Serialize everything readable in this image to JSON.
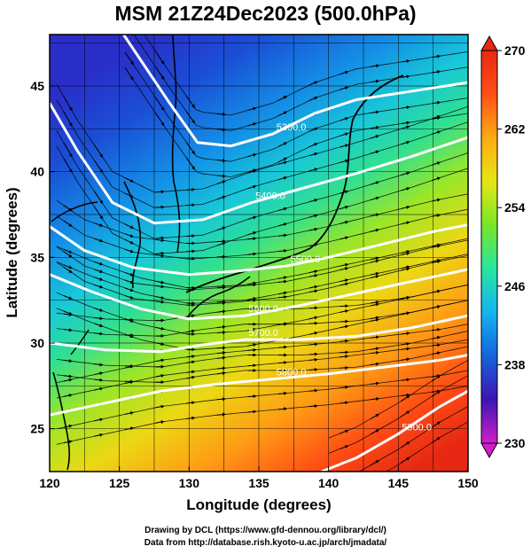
{
  "chart_data": {
    "type": "heatmap",
    "title": "MSM 21Z24Dec2023 (500.0hPa)",
    "xlabel": "Longitude (degrees)",
    "ylabel": "Latitude  (degrees)",
    "xlim": [
      120,
      150
    ],
    "ylim": [
      22.5,
      48
    ],
    "xticks": [
      "120",
      "125",
      "130",
      "135",
      "140",
      "145",
      "150"
    ],
    "yticks": [
      "25",
      "30",
      "35",
      "40",
      "45"
    ],
    "colorbar": {
      "min": 230,
      "max": 270,
      "ticks": [
        "270",
        "262",
        "254",
        "246",
        "238",
        "230"
      ],
      "colors": [
        "#d21ec8",
        "#3c14b4",
        "#1464dc",
        "#14b4f0",
        "#28e6a0",
        "#78e628",
        "#e6e614",
        "#ffaa14",
        "#ff5014",
        "#e62814"
      ]
    },
    "contours": [
      {
        "label": "5300.0",
        "points": [
          [
            125.3,
            48
          ],
          [
            128.6,
            44
          ],
          [
            130.6,
            41.7
          ],
          [
            133,
            41.5
          ],
          [
            136,
            42.2
          ],
          [
            139,
            43.4
          ],
          [
            142,
            44.2
          ],
          [
            146,
            44.7
          ],
          [
            150,
            45.2
          ]
        ]
      },
      {
        "label": "5400.0",
        "points": [
          [
            120,
            44
          ],
          [
            122,
            41.2
          ],
          [
            124.5,
            38.2
          ],
          [
            127.5,
            37
          ],
          [
            131,
            37.2
          ],
          [
            134.5,
            38.2
          ],
          [
            138,
            39
          ],
          [
            142,
            39.9
          ],
          [
            146,
            40.9
          ],
          [
            150,
            42
          ]
        ]
      },
      {
        "label": "5500.0",
        "points": [
          [
            120,
            36.8
          ],
          [
            122.5,
            35.4
          ],
          [
            126,
            34.4
          ],
          [
            130,
            34
          ],
          [
            133.5,
            34.2
          ],
          [
            137,
            34.5
          ],
          [
            140,
            35
          ],
          [
            144,
            35.8
          ],
          [
            147.5,
            36.5
          ],
          [
            150,
            36.9
          ]
        ]
      },
      {
        "label": "5600.0",
        "points": [
          [
            120,
            34
          ],
          [
            123,
            33
          ],
          [
            126.5,
            32
          ],
          [
            130,
            31.4
          ],
          [
            134,
            31.6
          ],
          [
            138,
            32.2
          ],
          [
            142,
            32.9
          ],
          [
            146,
            33.6
          ],
          [
            150,
            34.3
          ]
        ]
      },
      {
        "label": "5700.0",
        "points": [
          [
            120,
            30
          ],
          [
            124,
            29.6
          ],
          [
            128,
            29.5
          ],
          [
            131,
            29.9
          ],
          [
            134,
            30.2
          ],
          [
            138,
            30.2
          ],
          [
            142,
            30.4
          ],
          [
            146,
            30.9
          ],
          [
            150,
            31.6
          ]
        ]
      },
      {
        "label": "5800.0",
        "points": [
          [
            120,
            25.8
          ],
          [
            124,
            26.5
          ],
          [
            128,
            27.2
          ],
          [
            132,
            27.6
          ],
          [
            136,
            27.9
          ],
          [
            140,
            28.2
          ],
          [
            144,
            28.6
          ],
          [
            148,
            29
          ],
          [
            150,
            29.3
          ]
        ]
      },
      {
        "label": "5900.0",
        "points": [
          [
            139.5,
            22.5
          ],
          [
            142,
            23.3
          ],
          [
            145,
            24.7
          ],
          [
            148,
            26.3
          ],
          [
            150,
            27.2
          ]
        ]
      }
    ],
    "grid": true,
    "legend": "colorbar-right"
  },
  "footer": {
    "line1": "Drawing by DCL (https://www.gfd-dennou.org/library/dcl/)",
    "line2": "Data from http://database.rish.kyoto-u.ac.jp/arch/jmadata/"
  }
}
